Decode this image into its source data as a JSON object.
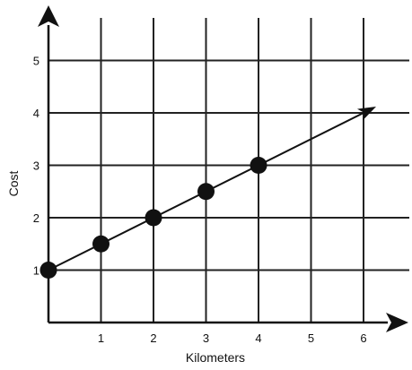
{
  "chart_data": {
    "type": "scatter",
    "title": "",
    "xlabel": "Kilometers",
    "ylabel": "Cost",
    "x_ticks": [
      1,
      2,
      3,
      4,
      5,
      6
    ],
    "y_ticks": [
      1,
      2,
      3,
      4,
      5
    ],
    "xlim": [
      0,
      6
    ],
    "ylim": [
      0,
      5.5
    ],
    "grid": true,
    "points": [
      {
        "x": 0,
        "y": 1
      },
      {
        "x": 1,
        "y": 1.5
      },
      {
        "x": 2,
        "y": 2
      },
      {
        "x": 3,
        "y": 2.5
      },
      {
        "x": 4,
        "y": 3
      }
    ],
    "trend_line": {
      "start": {
        "x": 0,
        "y": 1
      },
      "end": {
        "x": 6,
        "y": 4
      }
    },
    "colors": {
      "ink": "#111111",
      "background": "#ffffff"
    }
  }
}
